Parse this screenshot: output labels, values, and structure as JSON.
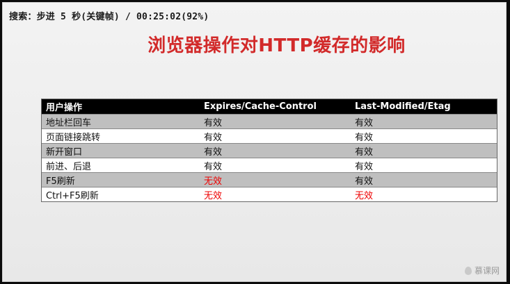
{
  "header": {
    "search_text": "搜索：步进 5 秒(关键帧) / 00:25:02(92%)"
  },
  "title": "浏览器操作对HTTP缓存的影响",
  "table": {
    "columns": [
      "用户操作",
      "Expires/Cache-Control",
      "Last-Modified/Etag"
    ],
    "rows": [
      {
        "action": "地址栏回车",
        "expires": "有效",
        "last_modified": "有效",
        "expires_invalid": false,
        "lm_invalid": false
      },
      {
        "action": "页面链接跳转",
        "expires": "有效",
        "last_modified": "有效",
        "expires_invalid": false,
        "lm_invalid": false
      },
      {
        "action": "新开窗口",
        "expires": "有效",
        "last_modified": "有效",
        "expires_invalid": false,
        "lm_invalid": false
      },
      {
        "action": "前进、后退",
        "expires": "有效",
        "last_modified": "有效",
        "expires_invalid": false,
        "lm_invalid": false
      },
      {
        "action": "F5刷新",
        "expires": "无效",
        "last_modified": "有效",
        "expires_invalid": true,
        "lm_invalid": false
      },
      {
        "action": "Ctrl+F5刷新",
        "expires": "无效",
        "last_modified": "无效",
        "expires_invalid": true,
        "lm_invalid": true
      }
    ]
  },
  "watermark": {
    "text": "慕课网",
    "icon": "flame-icon"
  },
  "colors": {
    "title": "#d22a2a",
    "invalid": "#e00000",
    "header_bg": "#000000",
    "alt_row_bg": "#bfbfbf"
  }
}
